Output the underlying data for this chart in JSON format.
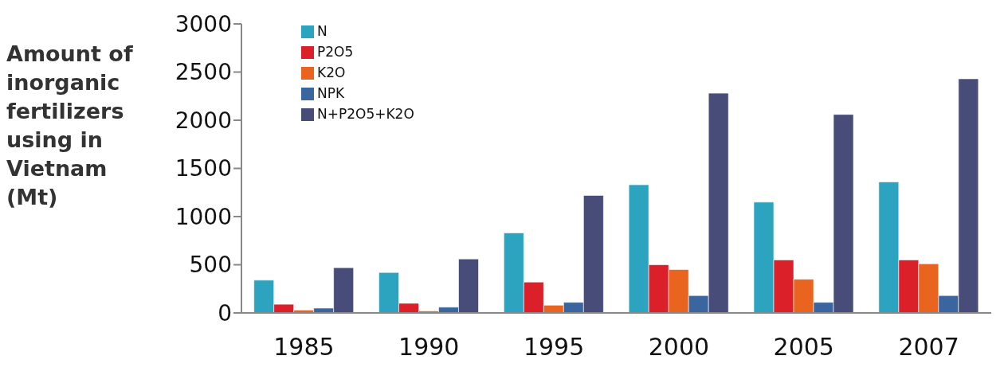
{
  "chart_data": {
    "type": "bar",
    "ylabel": "Amount of inorganic fertilizers using in Vietnam (Mt)",
    "categories": [
      "1985",
      "1990",
      "1995",
      "2000",
      "2005",
      "2007"
    ],
    "series": [
      {
        "name": "N",
        "color": "#2ca3bf",
        "values": [
          340,
          420,
          830,
          1330,
          1150,
          1360
        ]
      },
      {
        "name": "P2O5",
        "color": "#db202a",
        "values": [
          90,
          100,
          320,
          500,
          550,
          550
        ]
      },
      {
        "name": "K2O",
        "color": "#e9641e",
        "values": [
          30,
          20,
          80,
          450,
          350,
          510
        ]
      },
      {
        "name": "NPK",
        "color": "#3a659f",
        "values": [
          50,
          60,
          110,
          180,
          110,
          180
        ]
      },
      {
        "name": "N+P2O5+K2O",
        "color": "#474c78",
        "values": [
          470,
          560,
          1220,
          2280,
          2060,
          2430
        ]
      }
    ],
    "ylim": [
      0,
      3000
    ],
    "yticks": [
      0,
      500,
      1000,
      1500,
      2000,
      2500,
      3000
    ],
    "grid": false,
    "legend": "top left"
  }
}
